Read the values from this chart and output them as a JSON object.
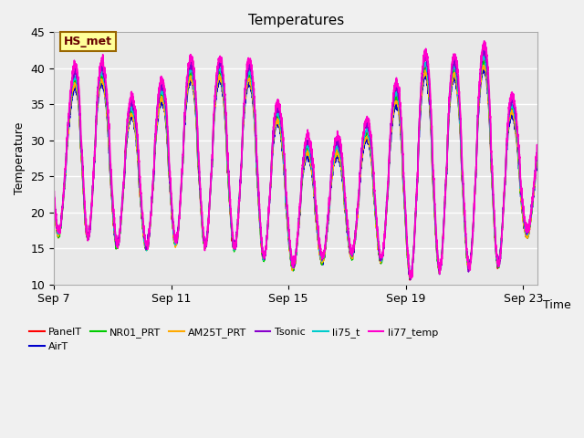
{
  "title": "Temperatures",
  "xlabel": "Time",
  "ylabel": "Temperature",
  "ylim": [
    10,
    45
  ],
  "xlim_days": [
    0,
    16.5
  ],
  "x_ticks_days": [
    0,
    4,
    8,
    12,
    16
  ],
  "x_tick_labels": [
    "Sep 7",
    "Sep 11",
    "Sep 15",
    "Sep 19",
    "Sep 23"
  ],
  "series_order": [
    "PanelT",
    "AirT",
    "NR01_PRT",
    "AM25T_PRT",
    "li75_t",
    "Tsonic",
    "li77_temp"
  ],
  "series": {
    "PanelT": {
      "color": "#ff0000",
      "lw": 1.0
    },
    "AirT": {
      "color": "#0000cc",
      "lw": 1.0
    },
    "NR01_PRT": {
      "color": "#00cc00",
      "lw": 1.0
    },
    "AM25T_PRT": {
      "color": "#ffaa00",
      "lw": 1.0
    },
    "Tsonic": {
      "color": "#8800cc",
      "lw": 1.2
    },
    "li75_t": {
      "color": "#00cccc",
      "lw": 1.0
    },
    "li77_temp": {
      "color": "#ff00cc",
      "lw": 1.2
    }
  },
  "hs_met_box": {
    "text": "HS_met",
    "facecolor": "#ffff99",
    "edgecolor": "#996600",
    "textcolor": "#660000",
    "fontsize": 9,
    "fontweight": "bold"
  },
  "background_color": "#f0f0f0",
  "plot_bg_color": "#e8e8e8",
  "grid_color": "#ffffff",
  "grid_lw": 1.0,
  "figsize": [
    6.4,
    4.8
  ],
  "dpi": 100,
  "peak_days": [
    0.5,
    1.0,
    2.0,
    3.0,
    4.0,
    5.0,
    6.0,
    7.0,
    8.0,
    9.0,
    10.0,
    11.0,
    12.0,
    13.0,
    14.0,
    15.0,
    16.0
  ],
  "peak_heights": [
    35,
    44,
    36,
    33,
    38,
    40,
    39,
    39,
    30,
    28,
    29,
    32,
    38,
    41,
    39,
    42,
    30
  ],
  "trough_days": [
    0.0,
    0.8,
    1.5,
    2.5,
    3.5,
    4.5,
    5.5,
    6.5,
    7.5,
    8.5,
    9.5,
    10.5,
    11.5,
    12.5,
    13.5,
    14.5,
    15.5,
    16.5
  ],
  "trough_vals": [
    17,
    17,
    16,
    15,
    15,
    16,
    15,
    15,
    13,
    12,
    14,
    14,
    13,
    10,
    13,
    12,
    13,
    19
  ]
}
